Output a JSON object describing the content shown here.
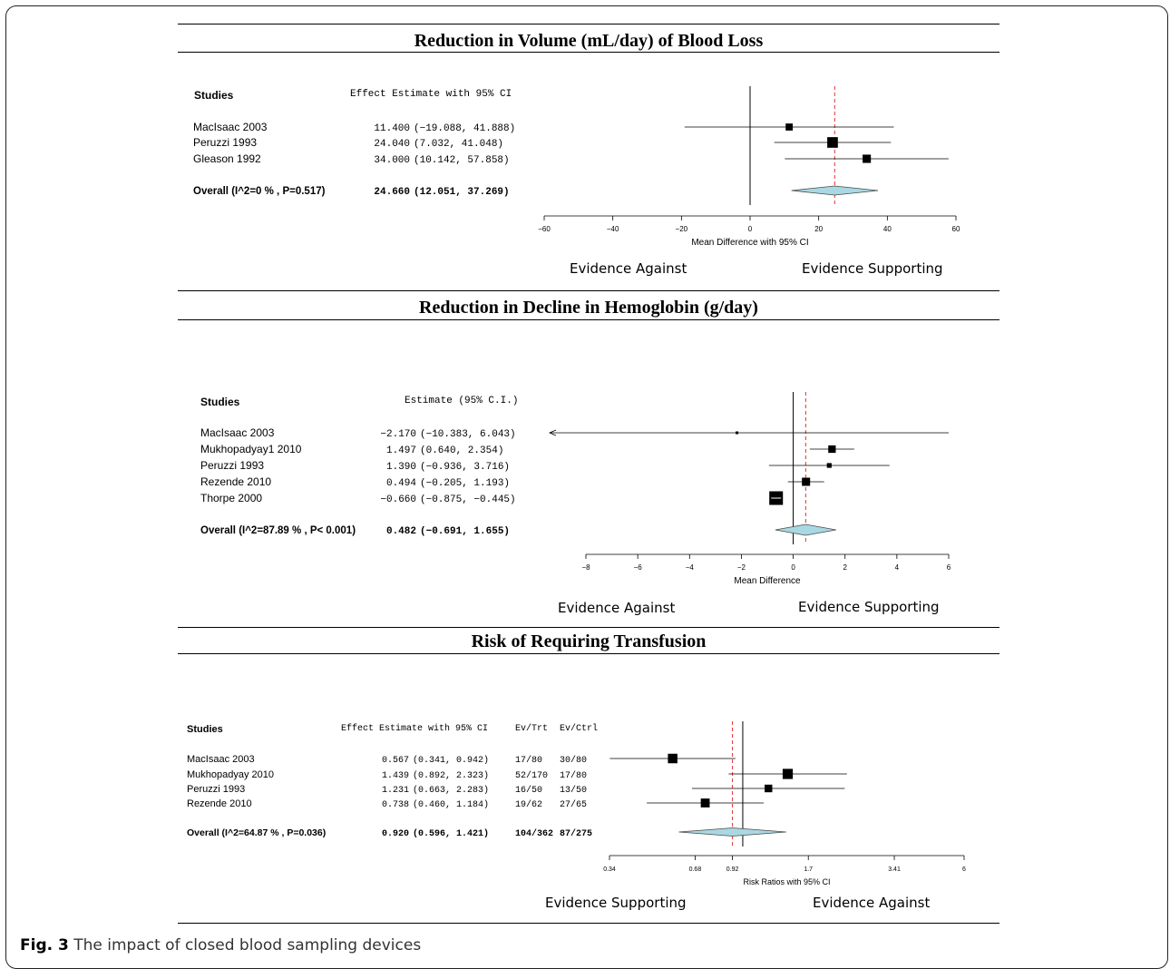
{
  "caption": {
    "label": "Fig. 3",
    "text": "The impact of closed blood sampling devices"
  },
  "chart_data": [
    {
      "type": "forest",
      "title": "Reduction in Volume (mL/day) of Blood Loss",
      "study_header": "Studies",
      "estimate_header": "Effect Estimate with 95% CI",
      "xlabel": "Mean Difference with 95% CI",
      "xlim": [
        -60,
        60
      ],
      "ticks": [
        "-60",
        "-40",
        "-20",
        "0",
        "20",
        "40",
        "60"
      ],
      "tick_values": [
        -60,
        -40,
        -20,
        0,
        20,
        40,
        60
      ],
      "null_value": 0,
      "pooled_line": 24.66,
      "evidence_left": "Evidence Against",
      "evidence_right": "Evidence Supporting",
      "studies": [
        {
          "name": "MacIsaac 2003",
          "est": 11.4,
          "lo": -19.088,
          "hi": 41.888,
          "est_text": "11.400",
          "ci_text": "(-19.088, 41.888)",
          "weight": 0.6
        },
        {
          "name": "Peruzzi 1993",
          "est": 24.04,
          "lo": 7.032,
          "hi": 41.048,
          "est_text": "24.040",
          "ci_text": "(7.032, 41.048)",
          "weight": 0.9
        },
        {
          "name": "Gleason 1992",
          "est": 34.0,
          "lo": 10.142,
          "hi": 57.858,
          "est_text": "34.000",
          "ci_text": "(10.142, 57.858)",
          "weight": 0.7
        }
      ],
      "overall": {
        "label": "Overall (I^2=0 % , P=0.517)",
        "est": 24.66,
        "lo": 12.051,
        "hi": 37.269,
        "est_text": "24.660",
        "ci_text": "(12.051, 37.269)"
      }
    },
    {
      "type": "forest",
      "title": "Reduction in Decline in Hemoglobin (g/day)",
      "study_header": "Studies",
      "estimate_header": "Estimate (95% C.I.)",
      "xlabel": "Mean Difference",
      "xlim": [
        -8,
        6
      ],
      "ticks": [
        "-8",
        "-6",
        "-4",
        "-2",
        "0",
        "2",
        "4",
        "6"
      ],
      "tick_values": [
        -8,
        -6,
        -4,
        -2,
        0,
        2,
        4,
        6
      ],
      "null_value": 0,
      "pooled_line": 0.482,
      "evidence_left": "Evidence Against",
      "evidence_right": "Evidence Supporting",
      "studies": [
        {
          "name": "MacIsaac 2003",
          "est": -2.17,
          "lo": -10.383,
          "hi": 6.043,
          "est_text": "-2.170",
          "ci_text": "(-10.383, 6.043)",
          "weight": 0.1,
          "arrow_left": true
        },
        {
          "name": "Mukhopadyay1 2010",
          "est": 1.497,
          "lo": 0.64,
          "hi": 2.354,
          "est_text": "1.497",
          "ci_text": "(0.640, 2.354)",
          "weight": 0.55
        },
        {
          "name": "Peruzzi 1993",
          "est": 1.39,
          "lo": -0.936,
          "hi": 3.716,
          "est_text": "1.390",
          "ci_text": "(-0.936, 3.716)",
          "weight": 0.35
        },
        {
          "name": "Rezende 2010",
          "est": 0.494,
          "lo": -0.205,
          "hi": 1.193,
          "est_text": "0.494",
          "ci_text": "(-0.205, 1.193)",
          "weight": 0.6
        },
        {
          "name": "Thorpe 2000",
          "est": -0.66,
          "lo": -0.875,
          "hi": -0.445,
          "est_text": "-0.660",
          "ci_text": "(-0.875, -0.445)",
          "weight": 1.0
        }
      ],
      "overall": {
        "label": "Overall (I^2=87.89 % , P< 0.001)",
        "est": 0.482,
        "lo": -0.691,
        "hi": 1.655,
        "est_text": "0.482",
        "ci_text": "(-0.691, 1.655)"
      }
    },
    {
      "type": "forest",
      "title": "Risk of Requiring Transfusion",
      "study_header": "Studies",
      "estimate_header": "Effect Estimate with 95% CI",
      "ev_trt_header": "Ev/Trt",
      "ev_ctrl_header": "Ev/Ctrl",
      "xlabel": "Risk Ratios with 95% CI",
      "scale": "log",
      "xlim": [
        0.34,
        6
      ],
      "ticks": [
        "0.34",
        "0.68",
        "0.92",
        "1.7",
        "3.41",
        "6"
      ],
      "tick_values": [
        0.34,
        0.68,
        0.92,
        1.7,
        3.41,
        6
      ],
      "null_value": 1,
      "pooled_line": 0.92,
      "evidence_left": "Evidence Supporting",
      "evidence_right": "Evidence Against",
      "studies": [
        {
          "name": "MacIsaac 2003",
          "est": 0.567,
          "lo": 0.341,
          "hi": 0.942,
          "est_text": "0.567",
          "ci_text": "(0.341, 0.942)",
          "ev_trt": "17/80",
          "ev_ctrl": "30/80",
          "weight": 0.75
        },
        {
          "name": "Mukhopadyay 2010",
          "est": 1.439,
          "lo": 0.892,
          "hi": 2.323,
          "est_text": "1.439",
          "ci_text": "(0.892, 2.323)",
          "ev_trt": "52/170",
          "ev_ctrl": "17/80",
          "weight": 0.8
        },
        {
          "name": "Peruzzi 1993",
          "est": 1.231,
          "lo": 0.663,
          "hi": 2.283,
          "est_text": "1.231",
          "ci_text": "(0.663, 2.283)",
          "ev_trt": "16/50",
          "ev_ctrl": "13/50",
          "weight": 0.6
        },
        {
          "name": "Rezende 2010",
          "est": 0.738,
          "lo": 0.46,
          "hi": 1.184,
          "est_text": "0.738",
          "ci_text": "(0.460, 1.184)",
          "ev_trt": "19/62",
          "ev_ctrl": "27/65",
          "weight": 0.7
        }
      ],
      "overall": {
        "label": "Overall (I^2=64.87 % , P=0.036)",
        "est": 0.92,
        "lo": 0.596,
        "hi": 1.421,
        "est_text": "0.920",
        "ci_text": "(0.596, 1.421)",
        "ev_trt": "104/362",
        "ev_ctrl": "87/275"
      }
    }
  ]
}
